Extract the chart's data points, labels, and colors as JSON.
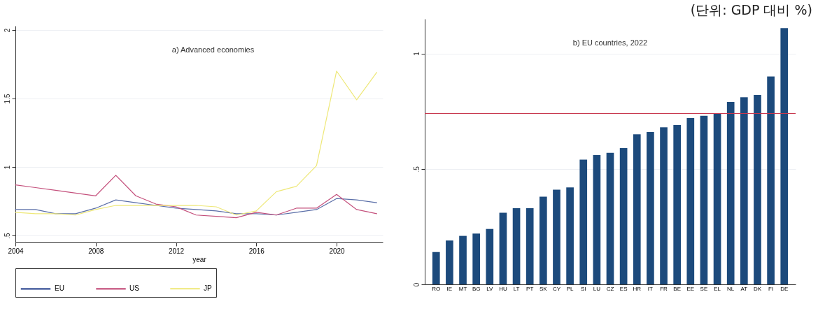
{
  "chart_data": [
    {
      "type": "line",
      "title": "a) Advanced economies",
      "xlabel": "year",
      "x": [
        2004,
        2005,
        2006,
        2007,
        2008,
        2009,
        2010,
        2011,
        2012,
        2013,
        2014,
        2015,
        2016,
        2017,
        2018,
        2019,
        2020,
        2021,
        2022
      ],
      "series": [
        {
          "name": "EU",
          "color": "#5b6fa8",
          "values": [
            0.69,
            0.69,
            0.66,
            0.66,
            0.7,
            0.76,
            0.74,
            0.72,
            0.7,
            0.69,
            0.68,
            0.66,
            0.66,
            0.65,
            0.67,
            0.69,
            0.77,
            0.76,
            0.74
          ]
        },
        {
          "name": "US",
          "color": "#c4507c",
          "values": [
            0.87,
            0.85,
            0.83,
            0.81,
            0.79,
            0.94,
            0.79,
            0.73,
            0.71,
            0.65,
            0.64,
            0.63,
            0.67,
            0.65,
            0.7,
            0.7,
            0.8,
            0.69,
            0.66
          ]
        },
        {
          "name": "JP",
          "color": "#eee878",
          "values": [
            0.67,
            0.66,
            0.66,
            0.65,
            0.69,
            0.72,
            0.72,
            0.72,
            0.72,
            0.72,
            0.71,
            0.65,
            0.68,
            0.82,
            0.86,
            1.01,
            1.7,
            1.49,
            1.69
          ]
        }
      ],
      "xlim": [
        2004,
        2022.3
      ],
      "xticks": [
        2004,
        2008,
        2012,
        2016,
        2020
      ],
      "ylim": [
        0.45,
        2.03
      ],
      "yticks": [
        {
          "value": 0.5,
          "label": ".5"
        },
        1,
        1.5,
        2
      ],
      "grid": "y",
      "legend": "bottom",
      "marker": "none",
      "line_style": "solid"
    },
    {
      "type": "bar",
      "title": "b) EU countries, 2022",
      "annotations": [
        "(단위: GDP 대비 %)"
      ],
      "categories": [
        "RO",
        "IE",
        "MT",
        "BG",
        "LV",
        "HU",
        "LT",
        "PT",
        "SK",
        "CY",
        "PL",
        "SI",
        "LU",
        "CZ",
        "ES",
        "HR",
        "IT",
        "FR",
        "BE",
        "EE",
        "SE",
        "EL",
        "NL",
        "AT",
        "DK",
        "FI",
        "DE"
      ],
      "values": [
        0.14,
        0.19,
        0.21,
        0.22,
        0.24,
        0.31,
        0.33,
        0.33,
        0.38,
        0.41,
        0.42,
        0.54,
        0.56,
        0.57,
        0.59,
        0.65,
        0.66,
        0.68,
        0.69,
        0.72,
        0.73,
        0.74,
        0.79,
        0.81,
        0.82,
        0.9,
        1.11
      ],
      "color": "#1c4a7c",
      "ylim": [
        0,
        1.15
      ],
      "yticks": [
        0,
        {
          "value": 0.5,
          "label": ".5"
        },
        1
      ],
      "ref_lines": [
        {
          "axis": "y",
          "value": 0.74,
          "color": "#c8384e"
        }
      ],
      "grid": "y"
    }
  ]
}
